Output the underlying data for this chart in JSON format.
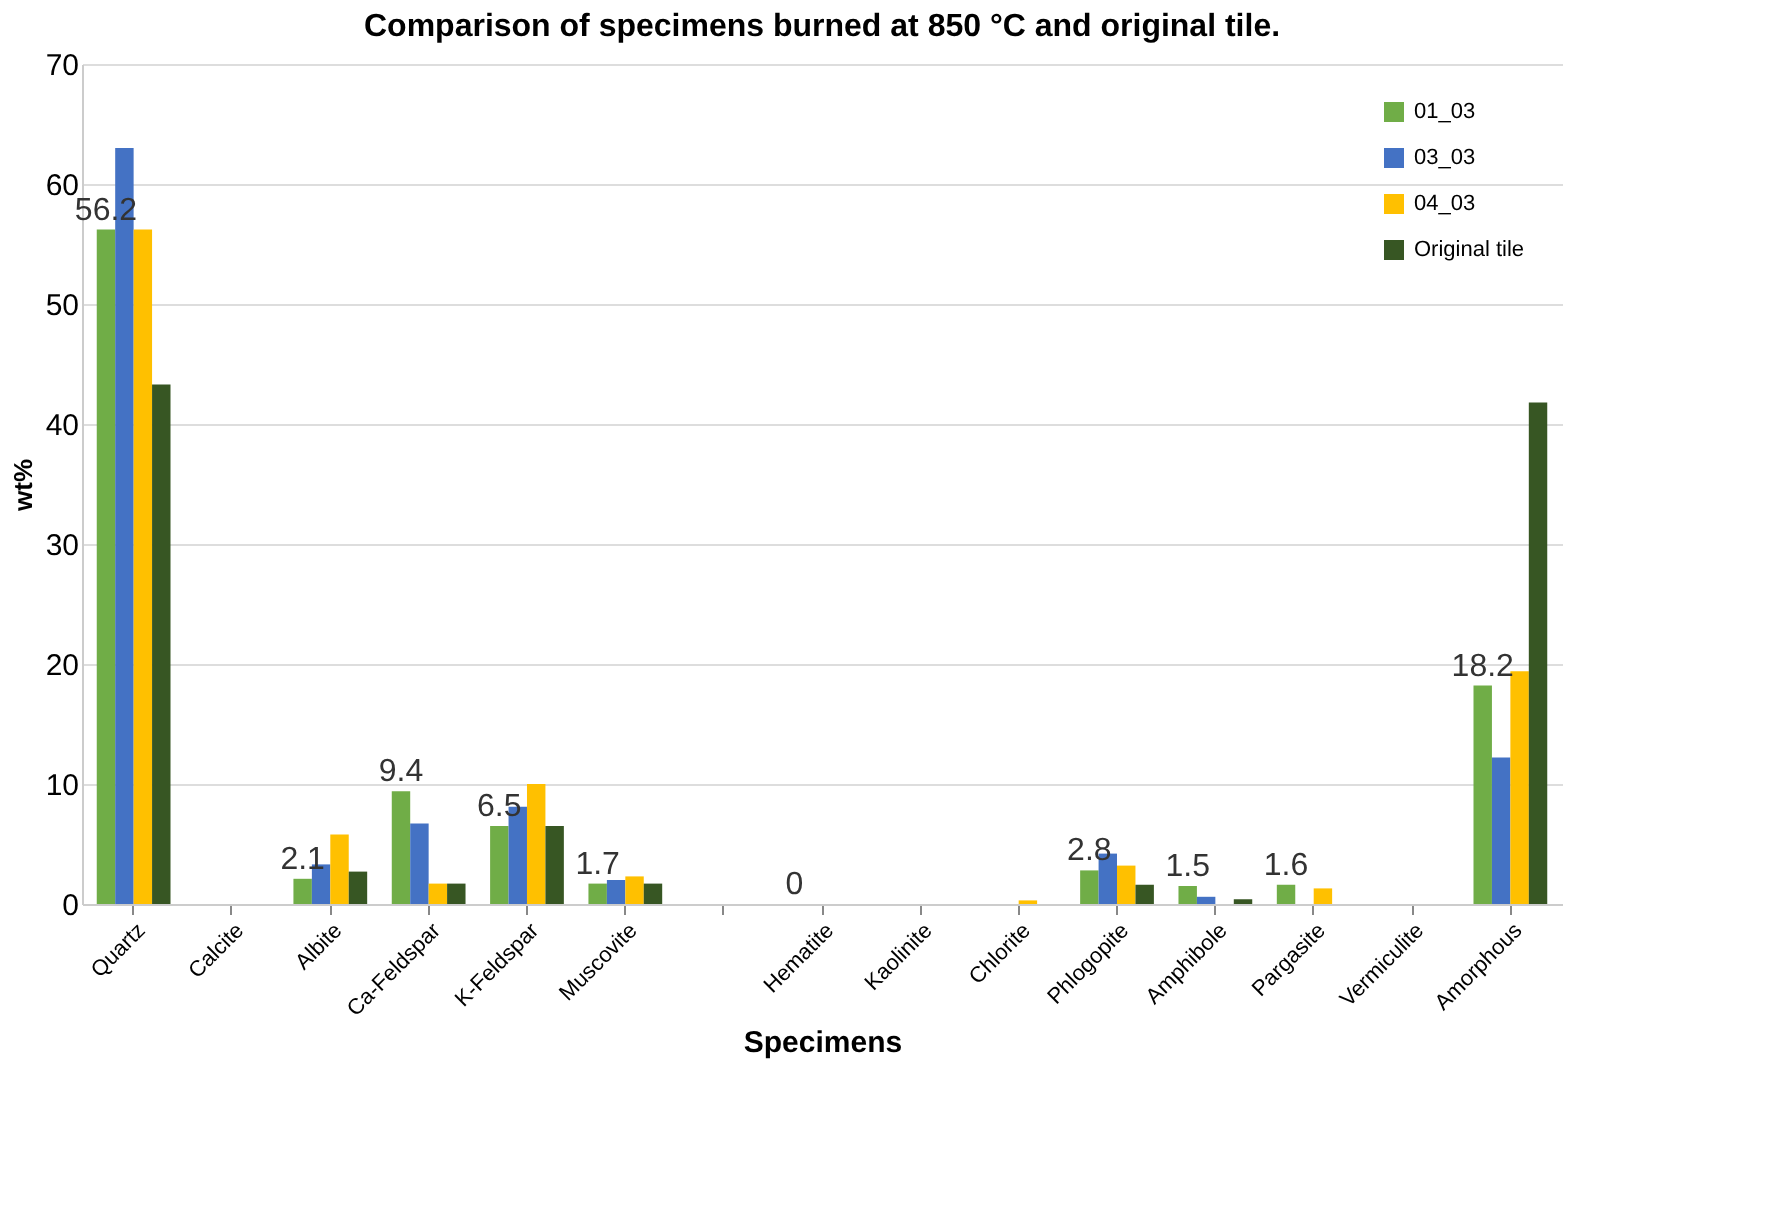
{
  "chart_data": {
    "type": "bar",
    "title": "Comparison of specimens burned at 850 °C and original tile.",
    "xlabel": "Specimens",
    "ylabel": "wt%",
    "categories": [
      "Quartz",
      "Calcite",
      "Albite",
      "Ca-Feldspar",
      "K-Feldspar",
      "Muscovite",
      null,
      "Hematite",
      "Kaolinite",
      "Chlorite",
      "Phlogopite",
      "Amphibole",
      "Pargasite",
      "Vermiculite",
      "Amorphous"
    ],
    "series": [
      {
        "name": "01_03",
        "color": "#70ad47",
        "values": [
          56.2,
          0,
          2.1,
          9.4,
          6.5,
          1.7,
          null,
          0,
          0,
          0,
          2.8,
          1.5,
          1.6,
          0,
          18.2
        ],
        "value_labels": [
          "56.2",
          null,
          "2.1",
          "9.4",
          "6.5",
          "1.7",
          null,
          "0",
          null,
          null,
          "2.8",
          "1.5",
          "1.6",
          null,
          "18.2"
        ]
      },
      {
        "name": "03_03",
        "color": "#4472c4",
        "values": [
          63,
          0,
          3.3,
          6.7,
          8.1,
          2.0,
          null,
          0,
          0,
          0,
          4.2,
          0.6,
          0,
          0,
          12.2
        ]
      },
      {
        "name": "04_03",
        "color": "#ffc000",
        "values": [
          56.2,
          0,
          5.8,
          1.7,
          10,
          2.3,
          null,
          0,
          0,
          0.3,
          3.2,
          0,
          1.3,
          0,
          19.4
        ]
      },
      {
        "name": "Original tile",
        "color": "#375623",
        "values": [
          43.3,
          0,
          2.7,
          1.7,
          6.5,
          1.7,
          null,
          0,
          0,
          0,
          1.6,
          0.4,
          0,
          0,
          41.8
        ]
      }
    ],
    "ylim": [
      0,
      70
    ],
    "yticks": [
      0,
      10,
      20,
      30,
      40,
      50,
      60,
      70
    ],
    "grid": "y",
    "legend": "top right"
  }
}
